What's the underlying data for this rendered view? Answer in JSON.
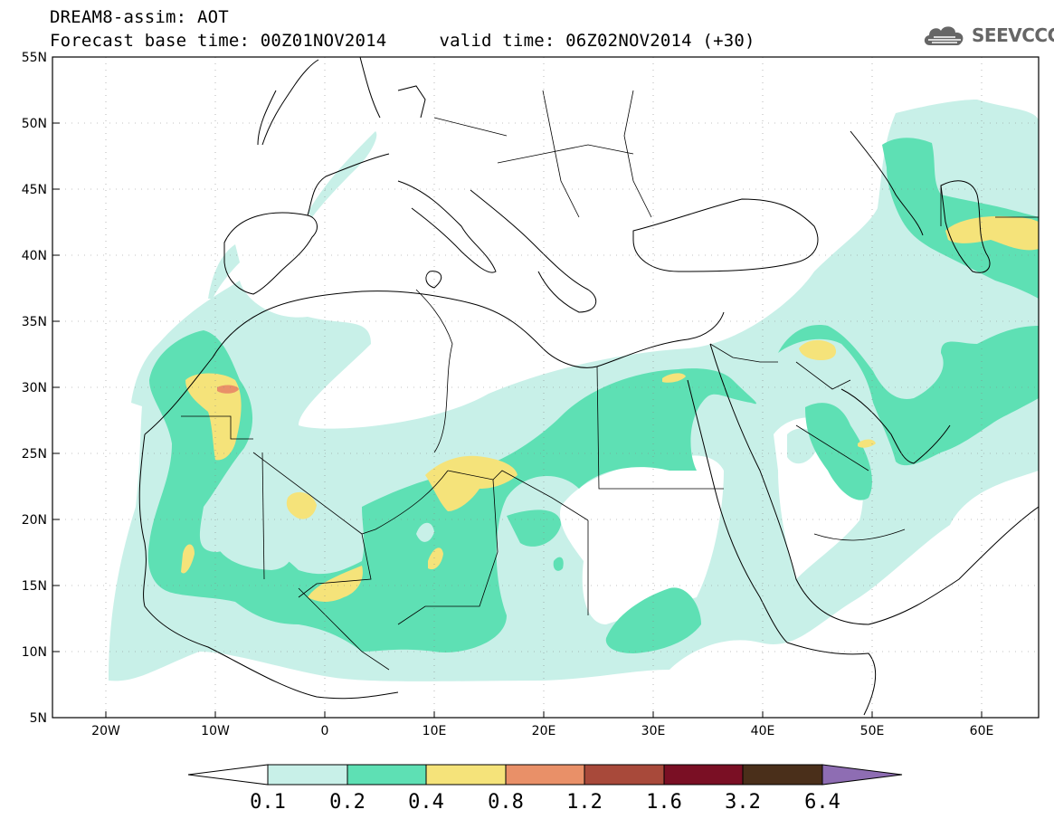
{
  "header": {
    "model_title": "DREAM8-assim: AOT",
    "base_time": "Forecast base time: 00Z01NOV2014",
    "valid_time": "valid time: 06Z02NOV2014 (+30)"
  },
  "logo": {
    "text": "SEEVCCC",
    "icon": "cloud-icon",
    "color": "#666666"
  },
  "map": {
    "lat_labels": [
      "55N",
      "50N",
      "45N",
      "40N",
      "35N",
      "30N",
      "25N",
      "20N",
      "15N",
      "10N",
      "5N"
    ],
    "lon_labels": [
      "20W",
      "10W",
      "0",
      "10E",
      "20E",
      "30E",
      "40E",
      "50E",
      "60E"
    ],
    "lat_range": [
      5,
      55
    ],
    "lon_range": [
      -25,
      65
    ],
    "grid": "dotted",
    "field": "AOT"
  },
  "colorbar": {
    "labels": [
      "0.1",
      "0.2",
      "0.4",
      "0.8",
      "1.2",
      "1.6",
      "3.2",
      "6.4"
    ],
    "colors": [
      "#ffffff",
      "#c8f0e8",
      "#5ee0b4",
      "#f5e37a",
      "#e99068",
      "#a8493a",
      "#7a0f24",
      "#4a2f1a",
      "#8e6db3"
    ]
  },
  "levels": {
    "c1": "#c8f0e8",
    "c2": "#5ee0b4",
    "c3": "#f5e37a",
    "c4": "#e99068",
    "border": "#000000"
  }
}
